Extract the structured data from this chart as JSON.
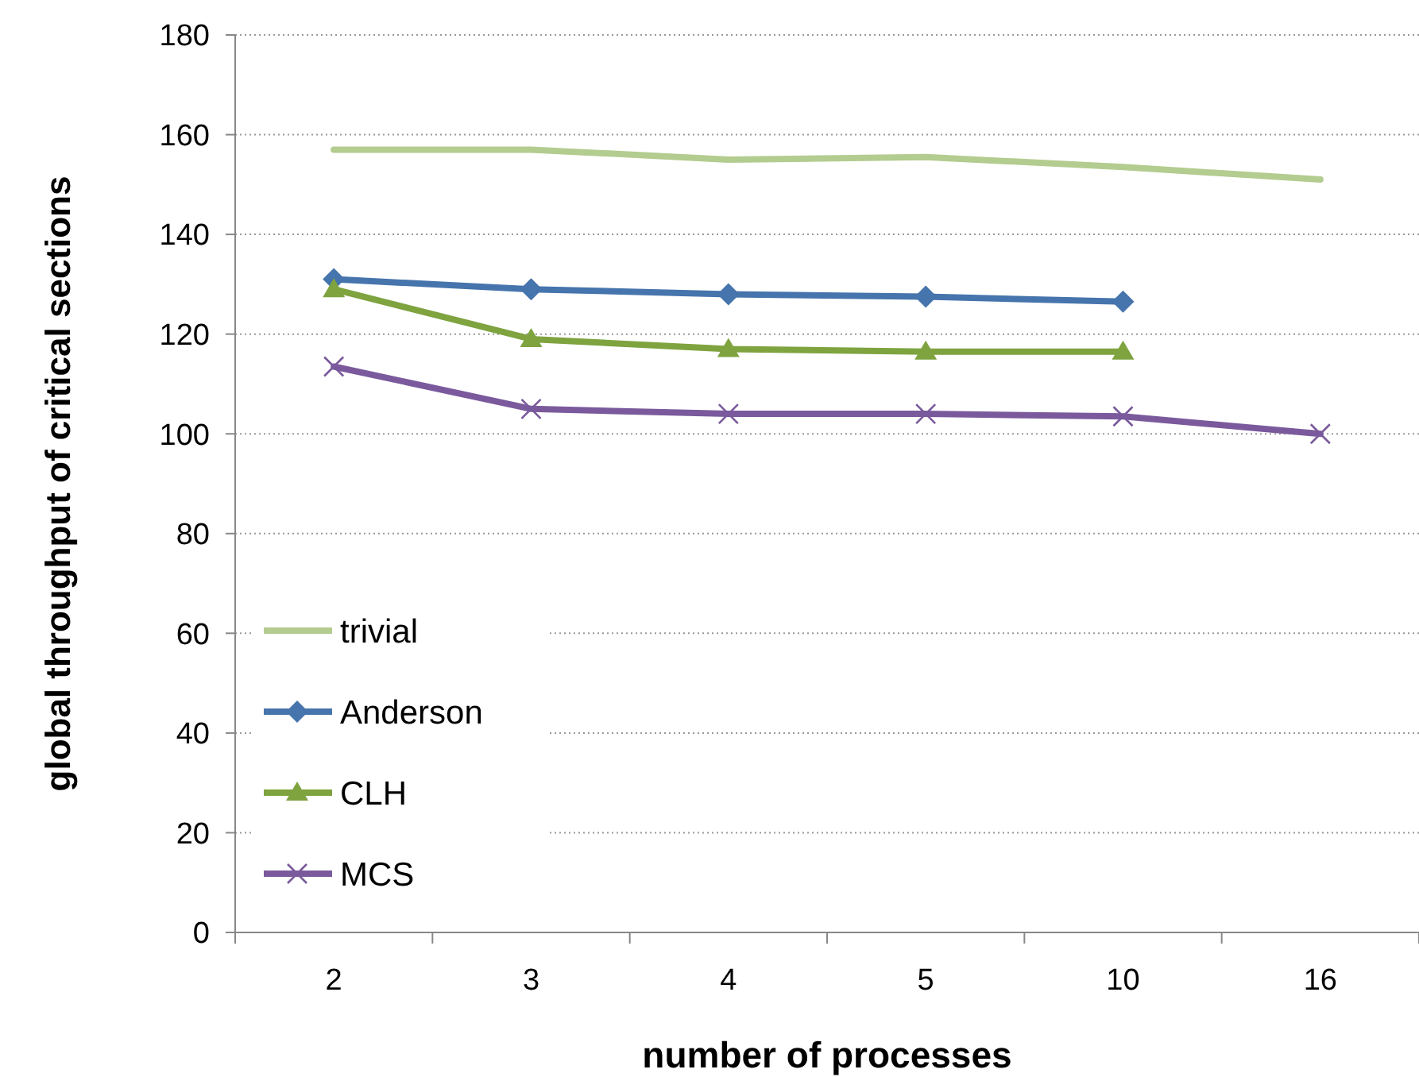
{
  "chart_data": {
    "type": "line",
    "xlabel": "number of processes",
    "ylabel": "global throughput of critical sections",
    "categories": [
      "2",
      "3",
      "4",
      "5",
      "10",
      "16"
    ],
    "series": [
      {
        "name": "trivial",
        "color": "#b3cc8f",
        "marker": "none",
        "values": [
          157,
          157,
          155,
          155.5,
          153.5,
          151
        ]
      },
      {
        "name": "Anderson",
        "color": "#4674ac",
        "marker": "diamond",
        "values": [
          131,
          129,
          128,
          127.5,
          126.5,
          null
        ]
      },
      {
        "name": "CLH",
        "color": "#7ea33f",
        "marker": "triangle",
        "values": [
          129,
          119,
          117,
          116.5,
          116.5,
          null
        ]
      },
      {
        "name": "MCS",
        "color": "#7a5a9c",
        "marker": "cross",
        "values": [
          113.5,
          105,
          104,
          104,
          103.5,
          100
        ]
      }
    ],
    "ylim": [
      0,
      180
    ],
    "yticks": [
      0,
      20,
      40,
      60,
      80,
      100,
      120,
      140,
      160,
      180
    ],
    "grid": "y",
    "legend": "bottom left",
    "line_style": "solid"
  }
}
